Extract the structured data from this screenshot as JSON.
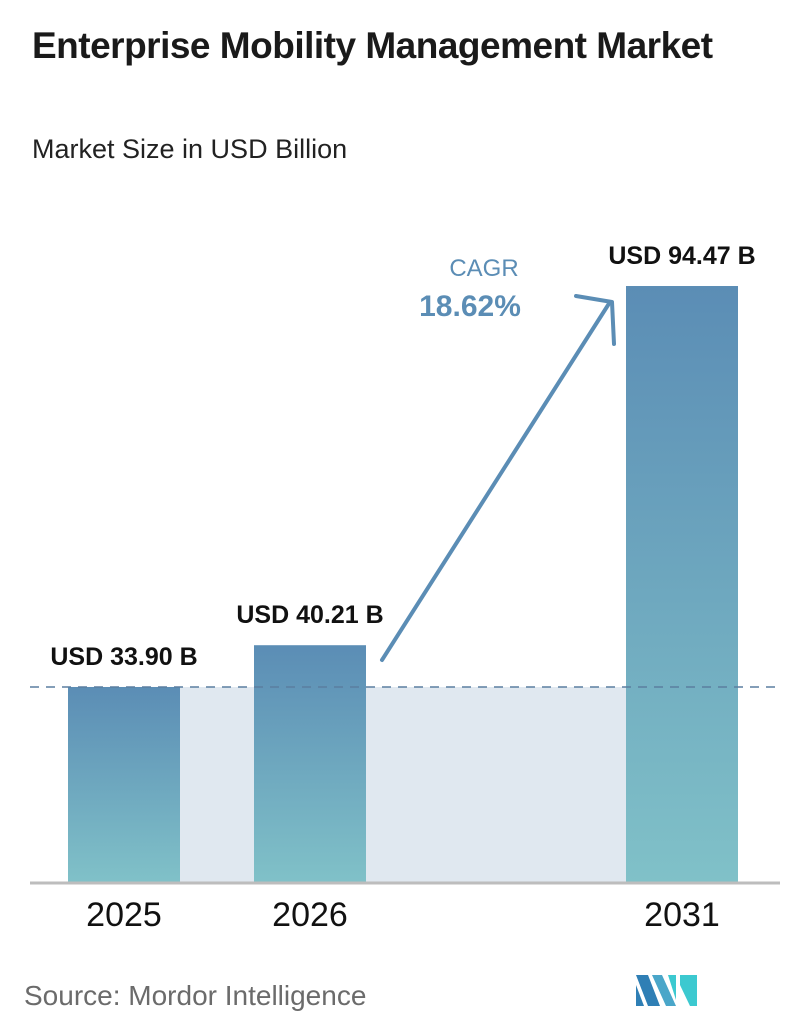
{
  "chart_data": {
    "type": "bar",
    "title": "Enterprise Mobility Management Market",
    "subtitle": "Market Size in USD Billion",
    "categories": [
      "2025",
      "2026",
      "2031"
    ],
    "values": [
      33.9,
      40.21,
      94.47
    ],
    "data_labels": [
      "USD 33.90 B",
      "USD 40.21 B",
      "USD 94.47 B"
    ],
    "annotation": {
      "label": "CAGR",
      "value": "18.62%"
    },
    "grid": false,
    "colors": {
      "bar_top": "#5b8db5",
      "bar_bottom": "#80c1c8",
      "band": "#e0e8f0",
      "accent": "#5b8db5"
    }
  },
  "source": "Source:  Mordor Intelligence",
  "logo_text": "Mordor Intelligence"
}
